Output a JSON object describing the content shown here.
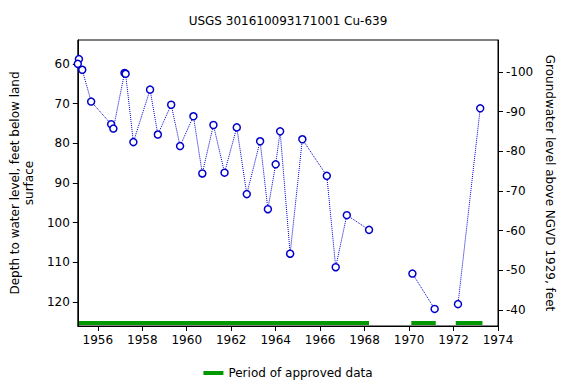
{
  "chart_data": {
    "type": "line",
    "title": "USGS 301610093171001 Cu-639",
    "y_label": "Depth to water level, feet below land\nsurface",
    "y2_label": "Groundwater level above NGVD 1929, feet",
    "x": [
      1955.15,
      1955.1,
      1955.3,
      1955.7,
      1956.6,
      1956.7,
      1957.2,
      1957.25,
      1957.6,
      1958.35,
      1958.7,
      1959.3,
      1959.7,
      1960.3,
      1960.7,
      1961.2,
      1961.7,
      1962.25,
      1962.7,
      1963.3,
      1963.65,
      1964.0,
      1964.2,
      1964.65,
      1965.2,
      1966.3,
      1966.7,
      1967.2,
      1968.2,
      null,
      1970.15,
      1971.15,
      null,
      1972.2,
      1973.2
    ],
    "series": [
      {
        "color": "#0000cc",
        "marker": "circle-open",
        "line_style": "dotted",
        "values": [
          58.8,
          60,
          61.5,
          69.5,
          75.2,
          76.3,
          62.3,
          62.5,
          79.7,
          66.5,
          77.8,
          70.3,
          80.7,
          73.2,
          87.6,
          75.4,
          87.4,
          76,
          92.8,
          79.5,
          96.6,
          85.3,
          77,
          107.8,
          79,
          88.2,
          111.2,
          98.1,
          101.8,
          null,
          112.8,
          121.7,
          null,
          120.5,
          71.2
        ]
      }
    ],
    "approved_periods": {
      "name": "Period of approved data",
      "color": "#009900",
      "ranges": [
        [
          1955.1,
          1968.2
        ],
        [
          1970.1,
          1971.2
        ],
        [
          1972.1,
          1973.3
        ]
      ]
    },
    "xlim": [
      1955.1,
      1974
    ],
    "xticks": [
      1956,
      1958,
      1960,
      1962,
      1964,
      1966,
      1968,
      1970,
      1972,
      1974
    ],
    "ylim": [
      54,
      126
    ],
    "yticks": [
      60,
      70,
      80,
      90,
      100,
      110,
      120
    ],
    "y2lim": [
      -36,
      -108
    ],
    "y2ticks": [
      -40,
      -50,
      -60,
      -70,
      -80,
      -90,
      -100
    ],
    "grid": false,
    "legend": "bottom"
  }
}
